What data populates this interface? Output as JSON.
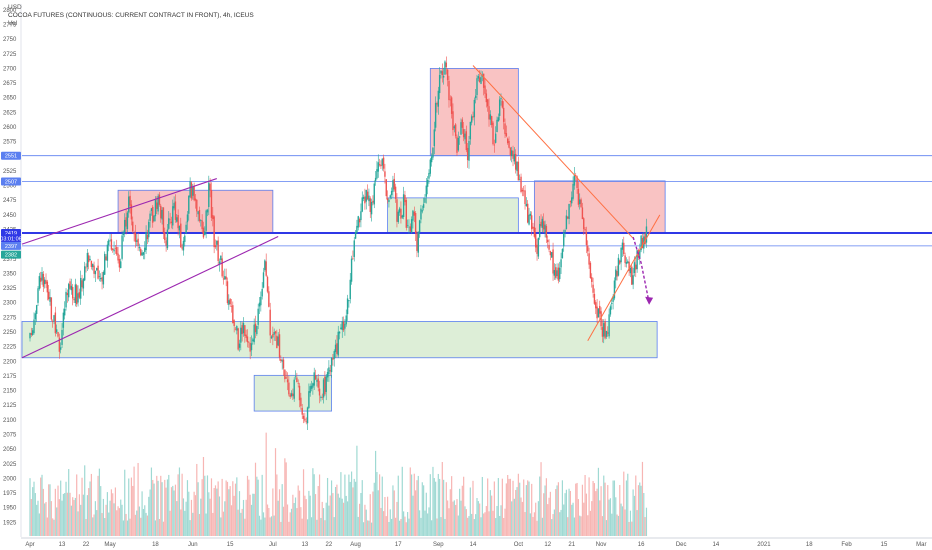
{
  "header": {
    "unit": "USD",
    "title": "COCOA FUTURES (CONTINUOUS: CURRENT CONTRACT IN FRONT), 4h, ICEUS",
    "volume_label": "Vol"
  },
  "colors": {
    "up": "#26a69a",
    "down": "#ef5350",
    "volume_up": "#9fd9d3",
    "volume_down": "#f7b5b3",
    "support_zone": "#d7ebd0",
    "resistance_zone": "#f8b9b9",
    "zone_border": "#5b7ff0",
    "main_line": "#2f38e6",
    "channel_line": "#9c27b0",
    "trend_line": "#ff7043",
    "projection_arrow": "#9c27b0",
    "price_tag_current": "#2f38e6",
    "price_tag_green": "#26a69a",
    "price_tag_level": "#5b7ff0"
  },
  "chart_data": {
    "type": "candlestick",
    "symbol": "COCOA FUTURES (CONTINUOUS: CURRENT CONTRACT IN FRONT)",
    "timeframe": "4h",
    "exchange": "ICEUS",
    "ylim": [
      1900,
      2810
    ],
    "y_ticks": [
      1925,
      1950,
      1975,
      2000,
      2025,
      2050,
      2075,
      2100,
      2125,
      2150,
      2175,
      2200,
      2225,
      2250,
      2275,
      2300,
      2325,
      2350,
      2375,
      2400,
      2425,
      2450,
      2475,
      2500,
      2525,
      2550,
      2575,
      2600,
      2625,
      2650,
      2675,
      2700,
      2725,
      2750,
      2775,
      2800
    ],
    "x_ticks": [
      "Apr",
      "13",
      "22",
      "May",
      "18",
      "Jun",
      "15",
      "Jul",
      "13",
      "22",
      "Aug",
      "17",
      "Sep",
      "14",
      "Oct",
      "12",
      "21",
      "Nov",
      "16",
      "Dec",
      "14",
      "2021",
      "18",
      "Feb",
      "15",
      "Mar"
    ],
    "x_tick_days": [
      0,
      12,
      21,
      30,
      47,
      61,
      75,
      91,
      103,
      112,
      122,
      138,
      153,
      166,
      183,
      194,
      203,
      214,
      229,
      244,
      257,
      275,
      292,
      306,
      320,
      334
    ],
    "x_range_days": [
      -3,
      338
    ],
    "price_tags": [
      {
        "label": "2551",
        "value": 2551,
        "kind": "level"
      },
      {
        "label": "2507",
        "value": 2507,
        "kind": "level"
      },
      {
        "label": "2419",
        "value": 2419,
        "kind": "current"
      },
      {
        "label": "03:01:06",
        "value": 2410,
        "kind": "current-timer"
      },
      {
        "label": "2397",
        "value": 2397,
        "kind": "level"
      },
      {
        "label": "2382",
        "value": 2382,
        "kind": "green"
      }
    ],
    "horizontal_levels": [
      {
        "value": 2551,
        "style": "thin"
      },
      {
        "value": 2507,
        "style": "thin"
      },
      {
        "value": 2419,
        "style": "thick"
      },
      {
        "value": 2397,
        "style": "thin"
      }
    ],
    "zones": [
      {
        "kind": "resistance",
        "day_from": 33,
        "day_to": 91,
        "low": 2420,
        "high": 2492
      },
      {
        "kind": "resistance",
        "day_from": 150,
        "day_to": 183,
        "low": 2551,
        "high": 2700
      },
      {
        "kind": "resistance",
        "day_from": 189,
        "day_to": 238,
        "low": 2420,
        "high": 2508
      },
      {
        "kind": "support",
        "day_from": -3,
        "day_to": 235,
        "low": 2206,
        "high": 2268
      },
      {
        "kind": "support",
        "day_from": 84,
        "day_to": 113,
        "low": 2115,
        "high": 2176
      },
      {
        "kind": "support",
        "day_from": 134,
        "day_to": 183,
        "low": 2420,
        "high": 2479
      }
    ],
    "trendlines": [
      {
        "kind": "channel",
        "from": [
          -3,
          2400
        ],
        "to": [
          70,
          2512
        ]
      },
      {
        "kind": "channel",
        "from": [
          -3,
          2206
        ],
        "to": [
          93,
          2413
        ]
      },
      {
        "kind": "trend",
        "from": [
          166,
          2705
        ],
        "to": [
          226,
          2410
        ]
      },
      {
        "kind": "trend",
        "from": [
          209,
          2235
        ],
        "to": [
          236,
          2450
        ]
      }
    ],
    "projection_arrow": {
      "points": [
        [
          226,
          2412
        ],
        [
          229,
          2368
        ],
        [
          232,
          2300
        ]
      ]
    },
    "price_path": [
      [
        0,
        2235
      ],
      [
        4,
        2350
      ],
      [
        8,
        2285
      ],
      [
        11,
        2220
      ],
      [
        14,
        2330
      ],
      [
        18,
        2310
      ],
      [
        22,
        2385
      ],
      [
        26,
        2330
      ],
      [
        30,
        2410
      ],
      [
        33,
        2360
      ],
      [
        37,
        2465
      ],
      [
        41,
        2380
      ],
      [
        45,
        2440
      ],
      [
        48,
        2480
      ],
      [
        51,
        2410
      ],
      [
        54,
        2470
      ],
      [
        57,
        2390
      ],
      [
        60,
        2495
      ],
      [
        63,
        2460
      ],
      [
        65,
        2400
      ],
      [
        67,
        2500
      ],
      [
        69,
        2410
      ],
      [
        72,
        2360
      ],
      [
        75,
        2290
      ],
      [
        78,
        2235
      ],
      [
        80,
        2265
      ],
      [
        83,
        2225
      ],
      [
        86,
        2300
      ],
      [
        88,
        2380
      ],
      [
        90,
        2260
      ],
      [
        93,
        2230
      ],
      [
        95,
        2185
      ],
      [
        97,
        2140
      ],
      [
        100,
        2170
      ],
      [
        103,
        2100
      ],
      [
        106,
        2170
      ],
      [
        109,
        2140
      ],
      [
        112,
        2180
      ],
      [
        115,
        2225
      ],
      [
        117,
        2260
      ],
      [
        119,
        2300
      ],
      [
        121,
        2380
      ],
      [
        123,
        2440
      ],
      [
        126,
        2490
      ],
      [
        128,
        2460
      ],
      [
        130,
        2540
      ],
      [
        132,
        2550
      ],
      [
        134,
        2470
      ],
      [
        136,
        2500
      ],
      [
        138,
        2440
      ],
      [
        140,
        2470
      ],
      [
        142,
        2415
      ],
      [
        144,
        2460
      ],
      [
        145,
        2395
      ],
      [
        147,
        2470
      ],
      [
        149,
        2510
      ],
      [
        151,
        2560
      ],
      [
        152,
        2640
      ],
      [
        154,
        2685
      ],
      [
        156,
        2700
      ],
      [
        158,
        2620
      ],
      [
        160,
        2570
      ],
      [
        162,
        2600
      ],
      [
        164,
        2560
      ],
      [
        166,
        2630
      ],
      [
        168,
        2695
      ],
      [
        170,
        2670
      ],
      [
        172,
        2620
      ],
      [
        174,
        2575
      ],
      [
        176,
        2650
      ],
      [
        178,
        2600
      ],
      [
        180,
        2560
      ],
      [
        182,
        2540
      ],
      [
        184,
        2500
      ],
      [
        186,
        2460
      ],
      [
        188,
        2430
      ],
      [
        190,
        2400
      ],
      [
        192,
        2450
      ],
      [
        194,
        2400
      ],
      [
        196,
        2360
      ],
      [
        198,
        2340
      ],
      [
        200,
        2420
      ],
      [
        202,
        2470
      ],
      [
        204,
        2510
      ],
      [
        206,
        2470
      ],
      [
        208,
        2420
      ],
      [
        210,
        2350
      ],
      [
        212,
        2300
      ],
      [
        214,
        2260
      ],
      [
        216,
        2250
      ],
      [
        218,
        2300
      ],
      [
        220,
        2360
      ],
      [
        222,
        2400
      ],
      [
        224,
        2360
      ],
      [
        226,
        2340
      ],
      [
        228,
        2390
      ],
      [
        230,
        2410
      ],
      [
        231,
        2419
      ]
    ],
    "volume_ylim": [
      0,
      1300
    ]
  }
}
